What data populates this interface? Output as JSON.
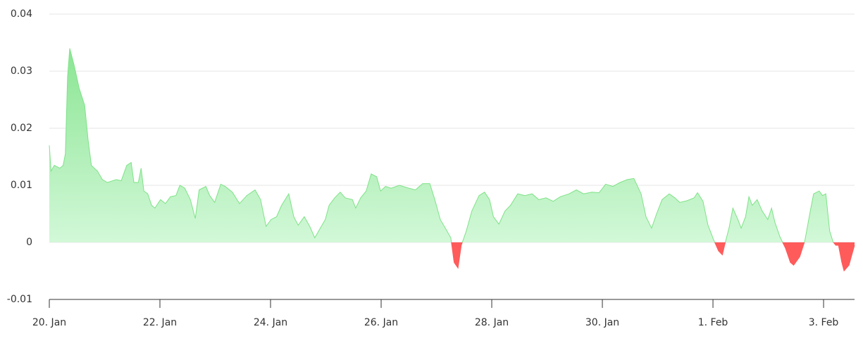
{
  "chart_data": {
    "type": "area",
    "x": [
      0,
      0.03,
      0.09,
      0.19,
      0.25,
      0.29,
      0.33,
      0.37,
      0.45,
      0.54,
      0.64,
      0.7,
      0.76,
      0.87,
      0.96,
      1.05,
      1.21,
      1.3,
      1.4,
      1.48,
      1.53,
      1.61,
      1.66,
      1.71,
      1.78,
      1.85,
      1.91,
      2.01,
      2.1,
      2.19,
      2.29,
      2.36,
      2.45,
      2.55,
      2.64,
      2.71,
      2.83,
      2.9,
      2.99,
      3.1,
      3.18,
      3.31,
      3.44,
      3.57,
      3.72,
      3.82,
      3.92,
      4.01,
      4.11,
      4.2,
      4.33,
      4.42,
      4.5,
      4.61,
      4.71,
      4.8,
      4.9,
      4.99,
      5.06,
      5.16,
      5.26,
      5.35,
      5.48,
      5.54,
      5.63,
      5.73,
      5.82,
      5.92,
      5.99,
      6.08,
      6.18,
      6.33,
      6.5,
      6.62,
      6.75,
      6.88,
      6.97,
      7.07,
      7.16,
      7.26,
      7.32,
      7.39,
      7.45,
      7.54,
      7.64,
      7.77,
      7.87,
      7.96,
      8.03,
      8.13,
      8.24,
      8.34,
      8.47,
      8.6,
      8.73,
      8.85,
      8.98,
      9.11,
      9.24,
      9.4,
      9.53,
      9.66,
      9.81,
      9.94,
      10.06,
      10.19,
      10.32,
      10.45,
      10.57,
      10.7,
      10.79,
      10.89,
      10.98,
      11.08,
      11.21,
      11.31,
      11.4,
      11.53,
      11.66,
      11.72,
      11.82,
      11.91,
      12.01,
      12.1,
      12.17,
      12.23,
      12.29,
      12.36,
      12.45,
      12.51,
      12.59,
      12.65,
      12.71,
      12.8,
      12.89,
      12.99,
      13.06,
      13.12,
      13.21,
      13.31,
      13.4,
      13.46,
      13.57,
      13.66,
      13.76,
      13.82,
      13.92,
      13.98,
      14.04,
      14.11,
      14.17,
      14.22,
      14.27,
      14.33,
      14.37,
      14.46,
      14.56
    ],
    "series": [
      {
        "color": "#7ee287",
        "negative_color": "#ff5b5b",
        "values": [
          0.017,
          0.0125,
          0.0135,
          0.013,
          0.0135,
          0.0155,
          0.029,
          0.034,
          0.031,
          0.027,
          0.024,
          0.018,
          0.0135,
          0.0125,
          0.011,
          0.0105,
          0.011,
          0.0108,
          0.0135,
          0.014,
          0.0105,
          0.0105,
          0.013,
          0.009,
          0.0085,
          0.0065,
          0.006,
          0.0075,
          0.0068,
          0.008,
          0.0082,
          0.01,
          0.0095,
          0.0075,
          0.0042,
          0.0092,
          0.0098,
          0.0082,
          0.007,
          0.0102,
          0.0098,
          0.0088,
          0.0068,
          0.0082,
          0.0092,
          0.0075,
          0.0028,
          0.004,
          0.0045,
          0.0065,
          0.0085,
          0.0045,
          0.003,
          0.0045,
          0.0028,
          0.0008,
          0.0025,
          0.004,
          0.0065,
          0.0078,
          0.0088,
          0.0078,
          0.0075,
          0.006,
          0.0078,
          0.009,
          0.012,
          0.0115,
          0.009,
          0.0098,
          0.0095,
          0.01,
          0.0095,
          0.0092,
          0.0103,
          0.0103,
          0.0075,
          0.004,
          0.0025,
          0.0008,
          -0.0035,
          -0.0045,
          -0.0005,
          0.002,
          0.0055,
          0.0082,
          0.0088,
          0.0075,
          0.0045,
          0.0032,
          0.0055,
          0.0065,
          0.0085,
          0.0082,
          0.0085,
          0.0075,
          0.0078,
          0.0072,
          0.008,
          0.0085,
          0.0092,
          0.0085,
          0.0088,
          0.0087,
          0.0102,
          0.0098,
          0.0105,
          0.011,
          0.0112,
          0.0085,
          0.0045,
          0.0025,
          0.005,
          0.0075,
          0.0085,
          0.0078,
          0.007,
          0.0073,
          0.0078,
          0.0087,
          0.0072,
          0.003,
          0.0005,
          -0.0015,
          -0.0022,
          0.0003,
          0.0025,
          0.006,
          0.004,
          0.0025,
          0.0045,
          0.008,
          0.0065,
          0.0075,
          0.0055,
          0.004,
          0.006,
          0.0035,
          0.001,
          -0.001,
          -0.0035,
          -0.004,
          -0.0025,
          0.0002,
          0.0055,
          0.0085,
          0.009,
          0.0082,
          0.0085,
          0.002,
          0.0001,
          -0.0005,
          -0.0005,
          -0.0035,
          -0.005,
          -0.004,
          -0.0005
        ]
      }
    ],
    "xlim": [
      0,
      14.56
    ],
    "xticks": [
      {
        "value": 0,
        "label": "20. Jan"
      },
      {
        "value": 2,
        "label": "22. Jan"
      },
      {
        "value": 4,
        "label": "24. Jan"
      },
      {
        "value": 6,
        "label": "26. Jan"
      },
      {
        "value": 8,
        "label": "28. Jan"
      },
      {
        "value": 10,
        "label": "30. Jan"
      },
      {
        "value": 12,
        "label": "1. Feb"
      },
      {
        "value": 14,
        "label": "3. Feb"
      }
    ],
    "ylim": [
      -0.01,
      0.04
    ],
    "yticks": [
      -0.01,
      0,
      0.01,
      0.02,
      0.03,
      0.04
    ],
    "grid": true
  }
}
